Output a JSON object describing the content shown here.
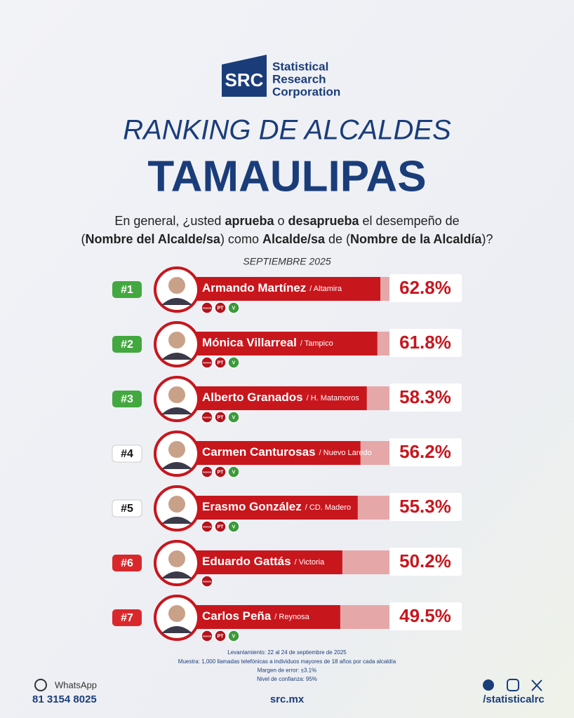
{
  "logo": {
    "mark": "SRC",
    "lines": [
      "Statistical",
      "Research",
      "Corporation"
    ]
  },
  "chart_data": {
    "type": "bar",
    "title": "RANKING DE ALCALDES",
    "subtitle": "TAMAULIPAS",
    "question": [
      [
        {
          "text": "En general, ¿usted ",
          "bold": false
        },
        {
          "text": "aprueba",
          "bold": true
        },
        {
          "text": " o ",
          "bold": false
        },
        {
          "text": "desaprueba",
          "bold": true
        },
        {
          "text": " el desempeño de",
          "bold": false
        }
      ],
      [
        {
          "text": "(",
          "bold": false
        },
        {
          "text": "Nombre del Alcalde/sa",
          "bold": true
        },
        {
          "text": ") como ",
          "bold": false
        },
        {
          "text": "Alcalde/sa",
          "bold": true
        },
        {
          "text": " de (",
          "bold": false
        },
        {
          "text": "Nombre de la Alcaldía",
          "bold": true
        },
        {
          "text": ")?",
          "bold": false
        }
      ]
    ],
    "date": "SEPTIEMBRE 2025",
    "ranks": [
      "#1",
      "#2",
      "#3",
      "#4",
      "#5",
      "#6",
      "#7"
    ],
    "rank_colors": [
      "#43a83f",
      "#43a83f",
      "#43a83f",
      "#ffffff",
      "#ffffff",
      "#d9282c",
      "#d9282c"
    ],
    "categories": [
      "Armando Martínez",
      "Mónica Villarreal",
      "Alberto Granados",
      "Carmen Canturosas",
      "Erasmo González",
      "Eduardo Gattás",
      "Carlos Peña"
    ],
    "places": [
      "/ Altamira",
      "/ Tampico",
      "/ H. Matamoros",
      "/ Nuevo Laredo",
      "/ CD. Madero",
      "/ Victoria",
      "/ Reynosa"
    ],
    "parties": [
      [
        "morena",
        "PT",
        "V"
      ],
      [
        "morena",
        "PT",
        "V"
      ],
      [
        "morena",
        "PT",
        "V"
      ],
      [
        "morena",
        "PT",
        "V"
      ],
      [
        "morena",
        "PT",
        "V"
      ],
      [
        "morena"
      ],
      [
        "morena",
        "PT",
        "V"
      ]
    ],
    "values": [
      62.8,
      61.8,
      58.3,
      56.2,
      55.3,
      50.2,
      49.5
    ],
    "value_labels": [
      "62.8%",
      "61.8%",
      "58.3%",
      "56.2%",
      "55.3%",
      "50.2%",
      "49.5%"
    ],
    "color": "#c8161d"
  },
  "notes": [
    "Levantamiento: 22 al 24 de septiembre de 2025",
    "Muestra: 1,000 llamadas telefónicas a individuos mayores de 18 años por cada alcaldía",
    "Margen de error: ±3.1%",
    "Nivel de confianza: 95%"
  ],
  "footer": {
    "whatsapp": "WhatsApp",
    "phone": "81 3154 8025",
    "site": "src.mx",
    "handle": "/statisticalrc"
  }
}
